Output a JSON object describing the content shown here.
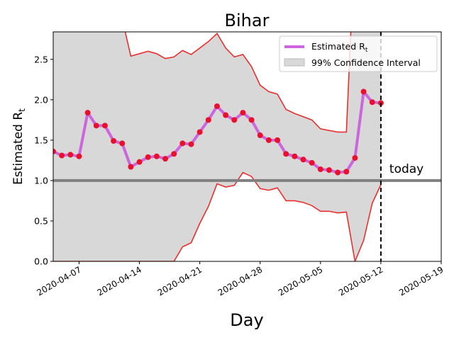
{
  "chart_data": {
    "type": "line",
    "title": "Bihar",
    "xlabel": "Day",
    "ylabel": "Estimated R",
    "ylabel_subscript": "t",
    "x": [
      "2020-04-04",
      "2020-04-05",
      "2020-04-06",
      "2020-04-07",
      "2020-04-08",
      "2020-04-09",
      "2020-04-10",
      "2020-04-11",
      "2020-04-12",
      "2020-04-13",
      "2020-04-14",
      "2020-04-15",
      "2020-04-16",
      "2020-04-17",
      "2020-04-18",
      "2020-04-19",
      "2020-04-20",
      "2020-04-21",
      "2020-04-22",
      "2020-04-23",
      "2020-04-24",
      "2020-04-25",
      "2020-04-26",
      "2020-04-27",
      "2020-04-28",
      "2020-04-29",
      "2020-04-30",
      "2020-05-01",
      "2020-05-02",
      "2020-05-03",
      "2020-05-04",
      "2020-05-05",
      "2020-05-06",
      "2020-05-07",
      "2020-05-08",
      "2020-05-09",
      "2020-05-10",
      "2020-05-11",
      "2020-05-12"
    ],
    "series": [
      {
        "name": "Estimated R",
        "name_subscript": "t",
        "color": "#cc66dd",
        "marker_color": "#e8112d",
        "values": [
          1.36,
          1.31,
          1.32,
          1.3,
          1.84,
          1.68,
          1.68,
          1.49,
          1.46,
          1.17,
          1.23,
          1.29,
          1.3,
          1.27,
          1.33,
          1.46,
          1.45,
          1.6,
          1.75,
          1.92,
          1.81,
          1.75,
          1.84,
          1.75,
          1.56,
          1.5,
          1.5,
          1.33,
          1.3,
          1.26,
          1.22,
          1.14,
          1.13,
          1.1,
          1.11,
          1.28,
          2.1,
          1.97,
          1.96
        ]
      }
    ],
    "interval": {
      "name": "99% Confidence Interval",
      "color": "#d8d8d8",
      "edge_color": "#e8302e",
      "upper": [
        3.5,
        3.5,
        3.5,
        3.5,
        3.5,
        3.5,
        3.5,
        3.5,
        3.0,
        2.54,
        2.57,
        2.6,
        2.57,
        2.51,
        2.53,
        2.61,
        2.56,
        2.64,
        2.72,
        2.82,
        2.64,
        2.53,
        2.56,
        2.41,
        2.18,
        2.1,
        2.07,
        1.88,
        1.83,
        1.79,
        1.75,
        1.64,
        1.62,
        1.6,
        1.6,
        4.0,
        4.0,
        4.0,
        4.0
      ],
      "lower": [
        0,
        0,
        0,
        0,
        0,
        0,
        0,
        0,
        0,
        0,
        0,
        0,
        0,
        0,
        0,
        0.18,
        0.23,
        0.47,
        0.68,
        0.96,
        0.92,
        0.94,
        1.1,
        1.05,
        0.9,
        0.88,
        0.91,
        0.75,
        0.75,
        0.73,
        0.69,
        0.62,
        0.62,
        0.6,
        0.61,
        0,
        0.26,
        0.72,
        0.95
      ]
    },
    "reference_line": {
      "value": 1.0,
      "color": "#808080"
    },
    "today": {
      "x": "2020-05-12",
      "label": "today"
    },
    "xlim": [
      "2020-04-04",
      "2020-05-19"
    ],
    "xticks": [
      "2020-04-07",
      "2020-04-14",
      "2020-04-21",
      "2020-04-28",
      "2020-05-05",
      "2020-05-12",
      "2020-05-19"
    ],
    "ylim": [
      0,
      2.84
    ],
    "yticks": [
      {
        "value": 0,
        "label": "0.0"
      },
      {
        "value": 0.5,
        "label": "0.5"
      },
      {
        "value": 1,
        "label": "1.0"
      },
      {
        "value": 1.5,
        "label": "1.5"
      },
      {
        "value": 2,
        "label": "2.0"
      },
      {
        "value": 2.5,
        "label": "2.5"
      }
    ],
    "legend": "upper right"
  }
}
